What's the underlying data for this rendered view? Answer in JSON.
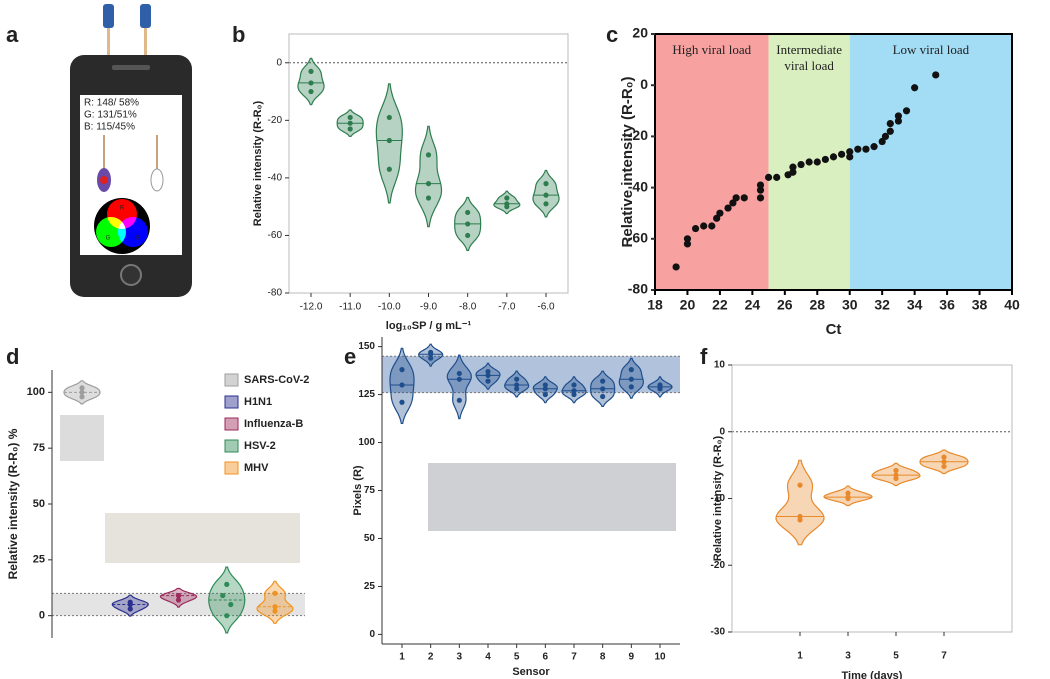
{
  "illustration": {
    "label": "a",
    "readout": [
      "R: 148/ 58%",
      "G: 131/51%",
      "B: 115/45%"
    ],
    "wheel": [
      "R",
      "G",
      "B"
    ]
  },
  "chart_data": [
    {
      "type": "violin",
      "label": "b",
      "categories": [
        "-12.0",
        "-11.0",
        "-10.0",
        "-9.0",
        "-8.0",
        "-7.0",
        "-6.0"
      ],
      "values": [
        [
          -3,
          -7,
          -10
        ],
        [
          -19,
          -21,
          -23
        ],
        [
          -19,
          -27,
          -37
        ],
        [
          -32,
          -42,
          -47
        ],
        [
          -52,
          -56,
          -60
        ],
        [
          -47,
          -49,
          -50
        ],
        [
          -42,
          -46,
          -49
        ]
      ],
      "color": "#2e7d4f",
      "ylim": [
        -80,
        10
      ],
      "yticks": [
        0,
        -20,
        -40,
        -60,
        -80
      ],
      "reference_line": 0,
      "frame": true,
      "xlabel": "log₁₀SP / g mL⁻¹",
      "ylabel": "Relative intensity (R-R₀)"
    },
    {
      "type": "scatter",
      "label": "c",
      "x": [
        19.3,
        20,
        20,
        20.5,
        21,
        21.5,
        21.8,
        22,
        22.5,
        22.8,
        23,
        23.5,
        24.5,
        24.5,
        24.5,
        25,
        25.5,
        26.2,
        26.5,
        26.5,
        27,
        27.5,
        28,
        28.5,
        29,
        29.5,
        30,
        30,
        30.5,
        31,
        31.5,
        32,
        32.2,
        32.5,
        32.5,
        33,
        33,
        33.5,
        34,
        35.3
      ],
      "values": [
        -71,
        -62,
        -60,
        -56,
        -55,
        -55,
        -52,
        -50,
        -48,
        -46,
        -44,
        -44,
        -44,
        -41,
        -39,
        -36,
        -36,
        -35,
        -34,
        -32,
        -31,
        -30,
        -30,
        -29,
        -28,
        -27,
        -28,
        -26,
        -25,
        -25,
        -24,
        -22,
        -20,
        -18,
        -15,
        -14,
        -12,
        -10,
        -1,
        4
      ],
      "color": "#111111",
      "xlim": [
        18,
        40
      ],
      "ylim": [
        -80,
        20
      ],
      "xticks": [
        18,
        20,
        22,
        24,
        26,
        28,
        30,
        32,
        34,
        36,
        38,
        40
      ],
      "yticks": [
        20,
        0,
        -20,
        -40,
        -60,
        -80
      ],
      "regions": [
        {
          "label": "High viral load",
          "x": [
            18,
            25
          ],
          "color": "#f8a1a1"
        },
        {
          "label": "Intermediate viral load",
          "x": [
            25,
            30
          ],
          "color": "#d9efc0"
        },
        {
          "label": "Low viral load",
          "x": [
            30,
            40
          ],
          "color": "#a3dcf5"
        }
      ],
      "frame": true,
      "xlabel": "Ct",
      "ylabel": "Relative intensity (R-R₀)"
    },
    {
      "type": "violin",
      "label": "d",
      "series": [
        {
          "name": "SARS-CoV-2",
          "color": "#9e9e9e",
          "values": [
            98,
            100,
            102
          ]
        },
        {
          "name": "H1N1",
          "color": "#2b2f8f",
          "values": [
            3,
            5,
            6
          ]
        },
        {
          "name": "Influenza-B",
          "color": "#9c2a5c",
          "values": [
            7,
            9,
            9
          ]
        },
        {
          "name": "HSV-2",
          "color": "#2e8b57",
          "values": [
            0,
            5,
            9,
            14
          ]
        },
        {
          "name": "MHV",
          "color": "#f0921f",
          "values": [
            2,
            4,
            10
          ]
        }
      ],
      "ylim": [
        -10,
        110
      ],
      "yticks": [
        0,
        25,
        50,
        75,
        100
      ],
      "band": [
        0,
        10
      ],
      "legend": "upper right",
      "frame": false,
      "ylabel": "Relative intensity (R-R₀) %"
    },
    {
      "type": "violin",
      "label": "e",
      "categories": [
        "1",
        "2",
        "3",
        "4",
        "5",
        "6",
        "7",
        "8",
        "9",
        "10"
      ],
      "values": [
        [
          121,
          130,
          138
        ],
        [
          144,
          146,
          147
        ],
        [
          122,
          133,
          136
        ],
        [
          132,
          135,
          137
        ],
        [
          128,
          130,
          133
        ],
        [
          125,
          128,
          130
        ],
        [
          125,
          127,
          130
        ],
        [
          124,
          128,
          132
        ],
        [
          129,
          133,
          138
        ],
        [
          128,
          129,
          130
        ]
      ],
      "color": "#1f4e8c",
      "ylim": [
        -5,
        155
      ],
      "yticks": [
        0,
        25,
        50,
        75,
        100,
        125,
        150
      ],
      "band": [
        126,
        145
      ],
      "frame": false,
      "xlabel": "Sensor",
      "ylabel": "Pixels (R)"
    },
    {
      "type": "violin",
      "label": "f",
      "categories": [
        "1",
        "3",
        "5",
        "7"
      ],
      "values": [
        [
          -8,
          -12.7,
          -13.2
        ],
        [
          -9.2,
          -9.8,
          -10
        ],
        [
          -5.8,
          -6.5,
          -7
        ],
        [
          -3.8,
          -4.5,
          -5.2
        ]
      ],
      "color": "#e8892b",
      "ylim": [
        -30,
        10
      ],
      "yticks": [
        10,
        0,
        -10,
        -20,
        -30
      ],
      "reference_line": 0,
      "frame": true,
      "xlabel": "Time (days)",
      "ylabel": "Relative intensity (R-R₀)"
    }
  ]
}
